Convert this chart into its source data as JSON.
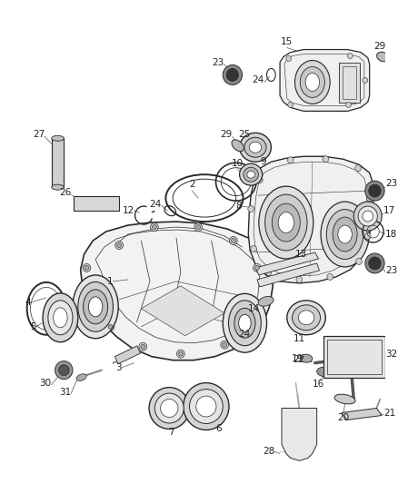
{
  "bg_color": "#ffffff",
  "fig_width": 4.38,
  "fig_height": 5.33,
  "dpi": 100,
  "lc": "#2a2a2a",
  "lw": 0.7
}
